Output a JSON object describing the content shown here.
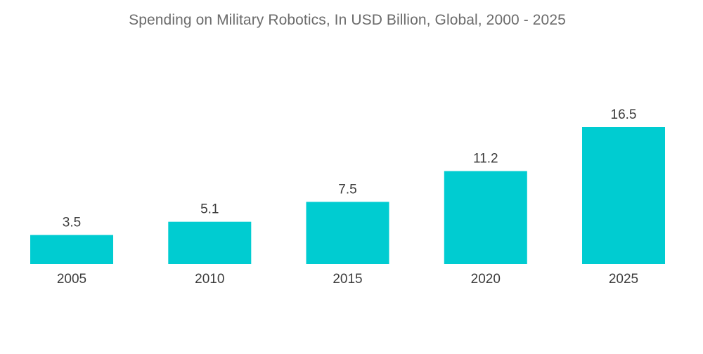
{
  "chart_data": {
    "type": "bar",
    "title": "Spending on Military Robotics, In USD Billion, Global, 2000 - 2025",
    "categories": [
      "2005",
      "2010",
      "2015",
      "2020",
      "2025"
    ],
    "values": [
      3.5,
      5.1,
      7.5,
      11.2,
      16.5
    ],
    "value_labels": [
      "3.5",
      "5.1",
      "7.5",
      "11.2",
      "16.5"
    ],
    "xlabel": "",
    "ylabel": "",
    "ylim": [
      0,
      16.5
    ],
    "grid": false,
    "legend": "none",
    "bar_color": "#00ccd1"
  }
}
